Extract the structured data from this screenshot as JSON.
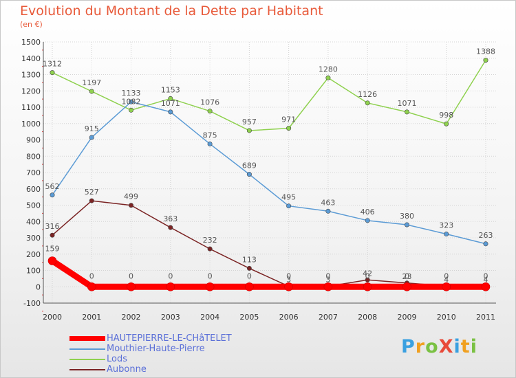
{
  "title": "Evolution du Montant de la Dette par Habitant",
  "unit": "(en €)",
  "brand": {
    "text": "ProXiti",
    "colors": [
      "#3aa0e0",
      "#f0a020",
      "#7ac143",
      "#e84a3a",
      "#3aa0e0",
      "#f0a020",
      "#7ac143"
    ]
  },
  "chart_data": {
    "type": "line",
    "categories": [
      "2000",
      "2001",
      "2002",
      "2003",
      "2004",
      "2005",
      "2006",
      "2007",
      "2008",
      "2009",
      "2010",
      "2011"
    ],
    "ylim": [
      -100,
      1500
    ],
    "yticks": [
      "-100",
      "0",
      "100",
      "200",
      "300",
      "400",
      "500",
      "600",
      "700",
      "800",
      "900",
      "1000",
      "1100",
      "1200",
      "1300",
      "1400",
      "1500"
    ],
    "grid": true,
    "legend_position": "bottom-left",
    "series": [
      {
        "name": "HAUTEPIERRE-LE-CHâTELET",
        "color": "#ff0000",
        "values": [
          159,
          0,
          0,
          0,
          0,
          0,
          0,
          0,
          0,
          0,
          0,
          0
        ],
        "labels": [
          "159",
          "0",
          "0",
          "0",
          "0",
          "0",
          "0",
          "0",
          "0",
          "0",
          "0",
          "0"
        ]
      },
      {
        "name": "Mouthier-Haute-Pierre",
        "color": "#5b9bd5",
        "values": [
          562,
          915,
          1133,
          1071,
          875,
          689,
          495,
          463,
          406,
          380,
          323,
          263
        ],
        "labels": [
          "562",
          "915",
          "1133",
          "1071",
          "875",
          "689",
          "495",
          "463",
          "406",
          "380",
          "323",
          "263"
        ]
      },
      {
        "name": "Lods",
        "color": "#8fd14f",
        "values": [
          1312,
          1197,
          1082,
          1153,
          1076,
          957,
          971,
          1280,
          1126,
          1071,
          998,
          1388
        ],
        "labels": [
          "1312",
          "1197",
          "1082",
          "1153",
          "1076",
          "957",
          "971",
          "1280",
          "1126",
          "1071",
          "998",
          "1388"
        ]
      },
      {
        "name": "Aubonne",
        "color": "#7b2424",
        "values": [
          316,
          527,
          499,
          363,
          232,
          113,
          3,
          3,
          42,
          23,
          4,
          4
        ],
        "labels": [
          "316",
          "527",
          "499",
          "363",
          "232",
          "113",
          "3",
          "3",
          "42",
          "23",
          "4",
          "4"
        ]
      }
    ]
  }
}
